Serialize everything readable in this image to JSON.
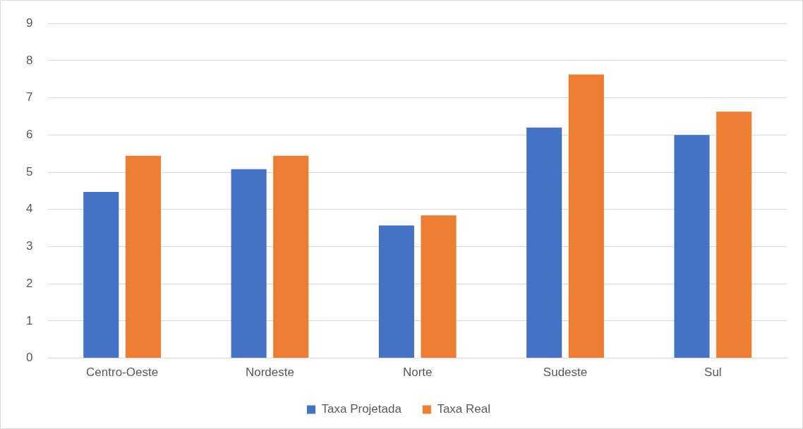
{
  "chart_data": {
    "type": "bar",
    "categories": [
      "Centro-Oeste",
      "Nordeste",
      "Norte",
      "Sudeste",
      "Sul"
    ],
    "series": [
      {
        "name": "Taxa Projetada",
        "color": "#4472c4",
        "values": [
          4.47,
          5.08,
          3.57,
          6.2,
          6.0
        ]
      },
      {
        "name": "Taxa Real",
        "color": "#ed7d31",
        "values": [
          5.44,
          5.44,
          3.84,
          7.63,
          6.63
        ]
      }
    ],
    "ylim": [
      0,
      9
    ],
    "yticks": [
      0,
      1,
      2,
      3,
      4,
      5,
      6,
      7,
      8,
      9
    ],
    "grid": "y",
    "legend": "bottom"
  }
}
